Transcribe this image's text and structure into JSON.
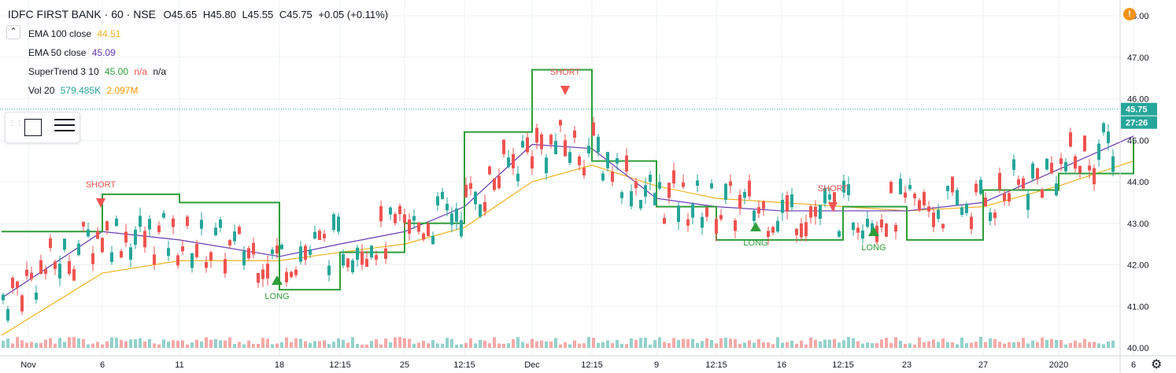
{
  "header": {
    "title": "IDFC FIRST BANK · 60 · NSE",
    "o": "O45.65",
    "h": "H45.80",
    "l": "L45.55",
    "c": "C45.75",
    "change": "+0.05 (+0.11%)",
    "collapse_icon": "chevron-up-icon"
  },
  "indicators": [
    {
      "label": "EMA 100 close",
      "value": "44.51",
      "color": "#f0b323"
    },
    {
      "label": "EMA 50 close",
      "value": "45.09",
      "color": "#673ab7"
    },
    {
      "label": "SuperTrend 3 10",
      "value": "45.00",
      "extra": "n/a",
      "extra2": "n/a",
      "color": "#2e9e3a"
    },
    {
      "label": "Vol 20",
      "value": "579.485K",
      "value2": "2.097M",
      "color": "#26a69a",
      "color2": "#ff9800"
    }
  ],
  "price_axis": {
    "ticks": [
      "48.00",
      "47.00",
      "46.00",
      "45.00",
      "44.00",
      "43.00",
      "42.00",
      "41.00",
      "40.00"
    ],
    "last_price": "45.75",
    "countdown": "27:26",
    "last_price_color": "#26a69a"
  },
  "time_axis": {
    "labels": [
      "Nov",
      "6",
      "11",
      "18",
      "12:15",
      "25",
      "12:15",
      "Dec",
      "12:15",
      "9",
      "12:15",
      "16",
      "12:15",
      "23",
      "27",
      "2020",
      "6"
    ]
  },
  "colors": {
    "up": "#26a69a",
    "down": "#ef5350",
    "supertrend_up": "#2e9e3a",
    "supertrend_down": "#f05450",
    "ema50": "#673ab7",
    "ema100": "#f0b323",
    "grid": "#eef0f3"
  },
  "signals": [
    {
      "type": "SHORT",
      "text": "SHORT"
    },
    {
      "type": "LONG",
      "text": "LONG"
    },
    {
      "type": "SHORT",
      "text": "SHORT"
    },
    {
      "type": "LONG",
      "text": "LONG"
    },
    {
      "type": "SHORT",
      "text": "SHORT"
    },
    {
      "type": "LONG",
      "text": "LONG"
    }
  ],
  "chart_data": {
    "type": "line",
    "ylim": [
      40.0,
      48.0
    ],
    "x": [
      "Nov",
      "6",
      "11",
      "18",
      "12:15",
      "25",
      "12:15",
      "Dec",
      "12:15",
      "9",
      "12:15",
      "16",
      "12:15",
      "23",
      "27",
      "2020",
      "6"
    ],
    "series": [
      {
        "name": "SuperTrend 3 10",
        "values": [
          42.8,
          43.7,
          43.5,
          41.4,
          42.3,
          43.0,
          45.2,
          46.7,
          44.5,
          43.4,
          42.6,
          42.6,
          43.4,
          42.6,
          43.8,
          44.2,
          45.0
        ]
      },
      {
        "name": "EMA 50 close",
        "values": [
          41.2,
          42.8,
          42.6,
          42.2,
          42.5,
          42.8,
          43.4,
          44.9,
          44.8,
          43.6,
          43.4,
          43.3,
          43.3,
          43.3,
          43.5,
          44.3,
          45.1
        ]
      },
      {
        "name": "EMA 100 close",
        "values": [
          40.3,
          41.8,
          42.1,
          42.1,
          42.3,
          42.5,
          42.9,
          44.0,
          44.4,
          43.9,
          43.6,
          43.5,
          43.4,
          43.3,
          43.4,
          43.9,
          44.5
        ]
      }
    ]
  }
}
